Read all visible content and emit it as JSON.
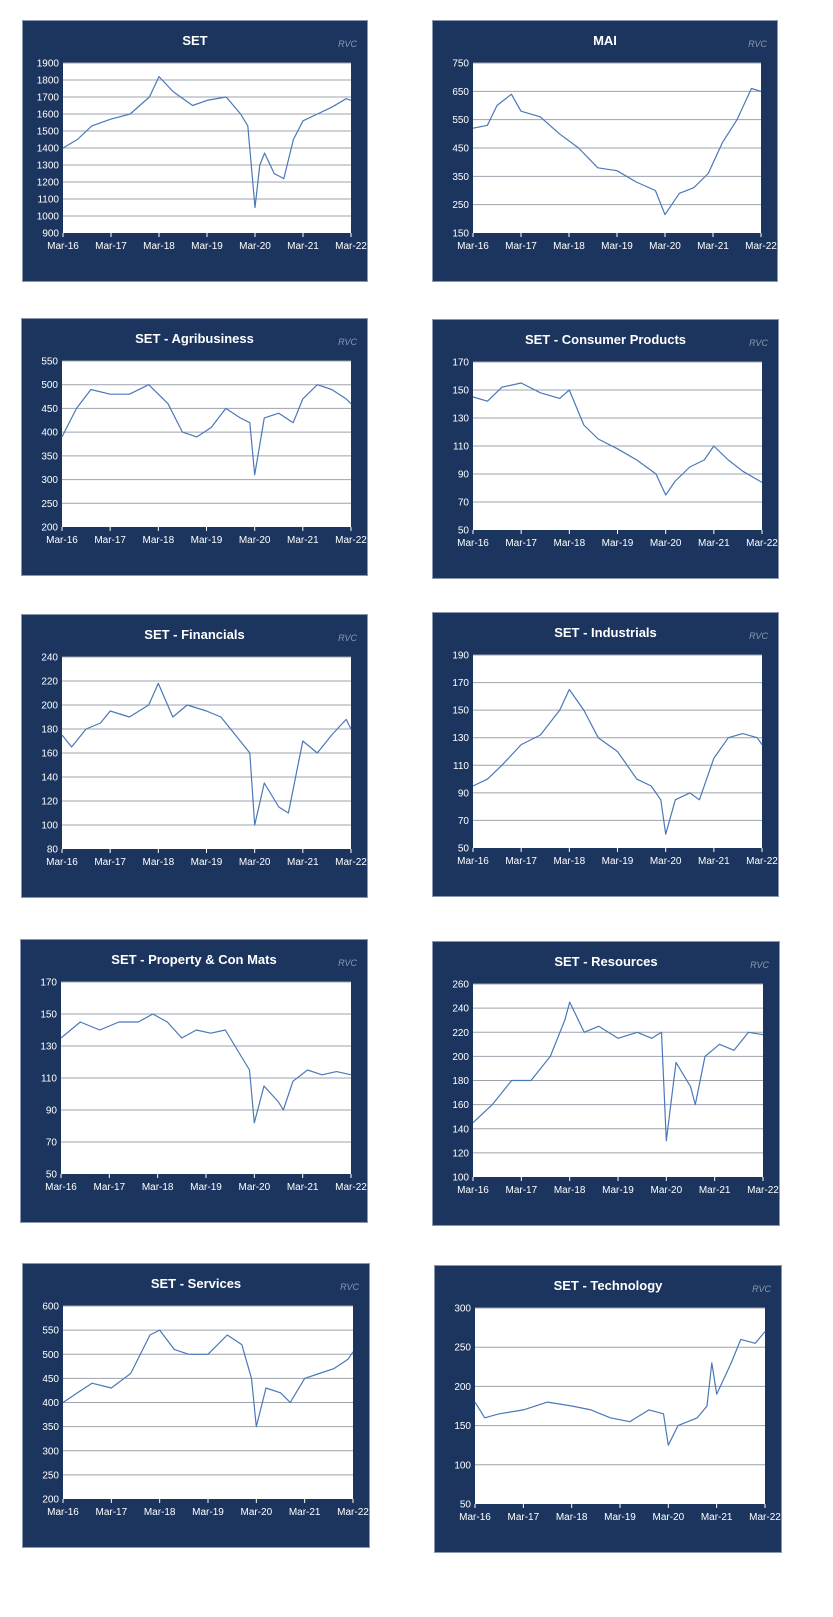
{
  "watermark": "RVC",
  "colors": {
    "panel": "#1b355f",
    "plot": "#ffffff",
    "line": "#4a78b8",
    "grid": "#9ea3ab",
    "text": "#ffffff"
  },
  "chart_data": [
    {
      "type": "line",
      "title": "SET",
      "xlabels": [
        "Mar-16",
        "Mar-17",
        "Mar-18",
        "Mar-19",
        "Mar-20",
        "Mar-21",
        "Mar-22"
      ],
      "ylim": [
        900,
        1900
      ],
      "yticks": [
        900,
        1000,
        1100,
        1200,
        1300,
        1400,
        1500,
        1600,
        1700,
        1800,
        1900
      ],
      "series": [
        {
          "x": [
            0,
            0.3,
            0.6,
            1.0,
            1.4,
            1.8,
            2.0,
            2.3,
            2.7,
            3.0,
            3.4,
            3.7,
            3.85,
            4.0,
            4.1,
            4.2,
            4.4,
            4.6,
            4.8,
            5.0,
            5.3,
            5.6,
            5.9,
            6.0
          ],
          "y": [
            1400,
            1450,
            1530,
            1570,
            1600,
            1700,
            1820,
            1730,
            1650,
            1680,
            1700,
            1600,
            1530,
            1050,
            1300,
            1370,
            1250,
            1220,
            1450,
            1560,
            1600,
            1640,
            1690,
            1680
          ]
        }
      ]
    },
    {
      "type": "line",
      "title": "MAI",
      "xlabels": [
        "Mar-16",
        "Mar-17",
        "Mar-18",
        "Mar-19",
        "Mar-20",
        "Mar-21",
        "Mar-22"
      ],
      "ylim": [
        150,
        750
      ],
      "yticks": [
        150,
        250,
        350,
        450,
        550,
        650,
        750
      ],
      "series": [
        {
          "x": [
            0,
            0.3,
            0.5,
            0.8,
            1.0,
            1.4,
            1.8,
            2.2,
            2.6,
            3.0,
            3.4,
            3.8,
            4.0,
            4.3,
            4.6,
            4.9,
            5.2,
            5.5,
            5.8,
            6.0
          ],
          "y": [
            520,
            530,
            600,
            640,
            580,
            560,
            500,
            450,
            380,
            370,
            330,
            300,
            215,
            290,
            310,
            360,
            470,
            550,
            660,
            650
          ]
        }
      ]
    },
    {
      "type": "line",
      "title": "SET - Agribusiness",
      "xlabels": [
        "Mar-16",
        "Mar-17",
        "Mar-18",
        "Mar-19",
        "Mar-20",
        "Mar-21",
        "Mar-22"
      ],
      "ylim": [
        200,
        550
      ],
      "yticks": [
        200,
        250,
        300,
        350,
        400,
        450,
        500,
        550
      ],
      "series": [
        {
          "x": [
            0,
            0.3,
            0.6,
            1.0,
            1.4,
            1.8,
            2.2,
            2.5,
            2.8,
            3.1,
            3.4,
            3.7,
            3.9,
            4.0,
            4.2,
            4.5,
            4.8,
            5.0,
            5.3,
            5.6,
            5.9,
            6.0
          ],
          "y": [
            390,
            450,
            490,
            480,
            480,
            500,
            460,
            400,
            390,
            410,
            450,
            430,
            420,
            310,
            430,
            440,
            420,
            470,
            500,
            490,
            470,
            460
          ]
        }
      ]
    },
    {
      "type": "line",
      "title": "SET - Consumer Products",
      "xlabels": [
        "Mar-16",
        "Mar-17",
        "Mar-18",
        "Mar-19",
        "Mar-20",
        "Mar-21",
        "Mar-22"
      ],
      "ylim": [
        50,
        170
      ],
      "yticks": [
        50,
        70,
        90,
        110,
        130,
        150,
        170
      ],
      "series": [
        {
          "x": [
            0,
            0.3,
            0.6,
            1.0,
            1.4,
            1.8,
            2.0,
            2.3,
            2.6,
            3.0,
            3.4,
            3.8,
            4.0,
            4.2,
            4.5,
            4.8,
            5.0,
            5.3,
            5.6,
            5.9,
            6.0
          ],
          "y": [
            145,
            142,
            152,
            155,
            148,
            144,
            150,
            125,
            115,
            108,
            100,
            90,
            75,
            85,
            95,
            100,
            110,
            100,
            92,
            86,
            84
          ]
        }
      ]
    },
    {
      "type": "line",
      "title": "SET - Financials",
      "xlabels": [
        "Mar-16",
        "Mar-17",
        "Mar-18",
        "Mar-19",
        "Mar-20",
        "Mar-21",
        "Mar-22"
      ],
      "ylim": [
        80,
        240
      ],
      "yticks": [
        80,
        100,
        120,
        140,
        160,
        180,
        200,
        220,
        240
      ],
      "series": [
        {
          "x": [
            0,
            0.2,
            0.5,
            0.8,
            1.0,
            1.4,
            1.8,
            2.0,
            2.3,
            2.6,
            3.0,
            3.3,
            3.6,
            3.9,
            4.0,
            4.2,
            4.5,
            4.7,
            5.0,
            5.3,
            5.6,
            5.9,
            6.0
          ],
          "y": [
            175,
            165,
            180,
            185,
            195,
            190,
            200,
            218,
            190,
            200,
            195,
            190,
            175,
            160,
            100,
            135,
            115,
            110,
            170,
            160,
            175,
            188,
            180
          ]
        }
      ]
    },
    {
      "type": "line",
      "title": "SET - Industrials",
      "xlabels": [
        "Mar-16",
        "Mar-17",
        "Mar-18",
        "Mar-19",
        "Mar-20",
        "Mar-21",
        "Mar-22"
      ],
      "ylim": [
        50,
        190
      ],
      "yticks": [
        50,
        70,
        90,
        110,
        130,
        150,
        170,
        190
      ],
      "series": [
        {
          "x": [
            0,
            0.3,
            0.6,
            1.0,
            1.4,
            1.8,
            2.0,
            2.3,
            2.6,
            3.0,
            3.4,
            3.7,
            3.9,
            4.0,
            4.2,
            4.5,
            4.7,
            5.0,
            5.3,
            5.6,
            5.9,
            6.0
          ],
          "y": [
            95,
            100,
            110,
            125,
            132,
            150,
            165,
            150,
            130,
            120,
            100,
            95,
            85,
            60,
            85,
            90,
            85,
            115,
            130,
            133,
            130,
            125
          ]
        }
      ]
    },
    {
      "type": "line",
      "title": "SET - Property & Con Mats",
      "xlabels": [
        "Mar-16",
        "Mar-17",
        "Mar-18",
        "Mar-19",
        "Mar-20",
        "Mar-21",
        "Mar-22"
      ],
      "ylim": [
        50,
        170
      ],
      "yticks": [
        50,
        70,
        90,
        110,
        130,
        150,
        170
      ],
      "series": [
        {
          "x": [
            0,
            0.4,
            0.8,
            1.2,
            1.6,
            1.9,
            2.2,
            2.5,
            2.8,
            3.1,
            3.4,
            3.7,
            3.9,
            4.0,
            4.2,
            4.5,
            4.6,
            4.8,
            5.1,
            5.4,
            5.7,
            6.0
          ],
          "y": [
            135,
            145,
            140,
            145,
            145,
            150,
            145,
            135,
            140,
            138,
            140,
            125,
            115,
            82,
            105,
            95,
            90,
            108,
            115,
            112,
            114,
            112
          ]
        }
      ]
    },
    {
      "type": "line",
      "title": "SET - Resources",
      "xlabels": [
        "Mar-16",
        "Mar-17",
        "Mar-18",
        "Mar-19",
        "Mar-20",
        "Mar-21",
        "Mar-22"
      ],
      "ylim": [
        100,
        260
      ],
      "yticks": [
        100,
        120,
        140,
        160,
        180,
        200,
        220,
        240,
        260
      ],
      "series": [
        {
          "x": [
            0,
            0.4,
            0.8,
            1.2,
            1.6,
            1.9,
            2.0,
            2.3,
            2.6,
            3.0,
            3.4,
            3.7,
            3.9,
            4.0,
            4.2,
            4.5,
            4.6,
            4.8,
            5.1,
            5.4,
            5.7,
            6.0
          ],
          "y": [
            145,
            160,
            180,
            180,
            200,
            230,
            245,
            220,
            225,
            215,
            220,
            215,
            220,
            130,
            195,
            175,
            160,
            200,
            210,
            205,
            220,
            218
          ]
        }
      ]
    },
    {
      "type": "line",
      "title": "SET - Services",
      "xlabels": [
        "Mar-16",
        "Mar-17",
        "Mar-18",
        "Mar-19",
        "Mar-20",
        "Mar-21",
        "Mar-22"
      ],
      "ylim": [
        200,
        600
      ],
      "yticks": [
        200,
        250,
        300,
        350,
        400,
        450,
        500,
        550,
        600
      ],
      "series": [
        {
          "x": [
            0,
            0.3,
            0.6,
            1.0,
            1.4,
            1.8,
            2.0,
            2.3,
            2.6,
            3.0,
            3.4,
            3.7,
            3.9,
            4.0,
            4.2,
            4.5,
            4.7,
            5.0,
            5.3,
            5.6,
            5.9,
            6.0
          ],
          "y": [
            400,
            420,
            440,
            430,
            460,
            540,
            550,
            510,
            500,
            500,
            540,
            520,
            450,
            350,
            430,
            420,
            400,
            450,
            460,
            470,
            490,
            505
          ]
        }
      ]
    },
    {
      "type": "line",
      "title": "SET - Technology",
      "xlabels": [
        "Mar-16",
        "Mar-17",
        "Mar-18",
        "Mar-19",
        "Mar-20",
        "Mar-21",
        "Mar-22"
      ],
      "ylim": [
        50,
        300
      ],
      "yticks": [
        50,
        100,
        150,
        200,
        250,
        300
      ],
      "series": [
        {
          "x": [
            0,
            0.2,
            0.5,
            1.0,
            1.5,
            2.0,
            2.4,
            2.8,
            3.2,
            3.6,
            3.9,
            4.0,
            4.2,
            4.6,
            4.8,
            4.9,
            5.0,
            5.3,
            5.5,
            5.8,
            6.0
          ],
          "y": [
            180,
            160,
            165,
            170,
            180,
            175,
            170,
            160,
            155,
            170,
            165,
            125,
            150,
            160,
            175,
            230,
            190,
            230,
            260,
            255,
            270
          ]
        }
      ]
    }
  ]
}
